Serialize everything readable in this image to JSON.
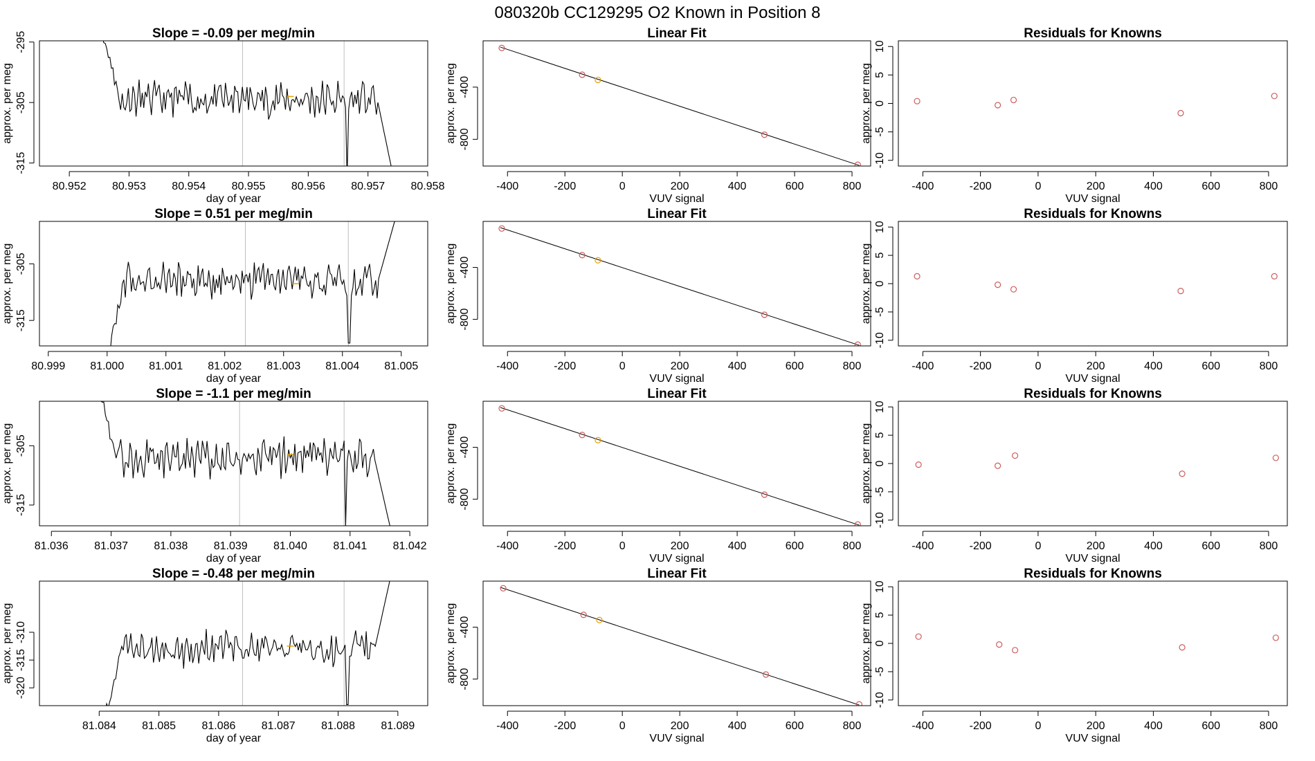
{
  "suptitle": "080320b      CC129295   O2 Known in Position  8",
  "colors": {
    "trace": "#000000",
    "point": "#cd5c5c",
    "highlight": "#e69f00",
    "vline": "#bebebe",
    "fitline": "#000000"
  },
  "chart_data": [
    {
      "row": 0,
      "type": "line",
      "title": "Slope =  -0.09  per meg/min",
      "xlabel": "day of year",
      "ylabel": "approx. per meg",
      "xlim": [
        80.9515,
        80.958
      ],
      "ylim": [
        -315.5,
        -294.8
      ],
      "xticks": [
        80.952,
        80.953,
        80.954,
        80.955,
        80.956,
        80.957,
        80.958
      ],
      "xtick_labels": [
        "80.952",
        "80.953",
        "80.954",
        "80.955",
        "80.956",
        "80.957",
        "80.958"
      ],
      "yticks": [
        -295,
        -305,
        -315
      ],
      "ytick_labels": [
        "-295",
        "-305",
        "-315"
      ],
      "vlines": [
        80.9549,
        80.9566
      ],
      "trace_start": 80.95255,
      "trace_end": 80.95745,
      "start_y": -293.0,
      "end_y": -318.5,
      "baseline": -304.5,
      "amplitude": 2.4,
      "dip_x": 80.95665,
      "dip_y": -317.5,
      "highlight": [
        80.9557,
        -304.0
      ]
    },
    {
      "row": 0,
      "type": "scatter",
      "title": "Linear Fit",
      "xlabel": "VUV signal",
      "ylabel": "approx. per meg",
      "xlim": [
        -485,
        865
      ],
      "ylim": [
        -1005,
        -45
      ],
      "xticks": [
        -400,
        -200,
        0,
        200,
        400,
        600,
        800
      ],
      "xtick_labels": [
        "-400",
        "-200",
        "0",
        "200",
        "400",
        "600",
        "800"
      ],
      "yticks": [
        -400,
        -800
      ],
      "ytick_labels": [
        "-400",
        "-800"
      ],
      "x": [
        -420,
        -140,
        -85,
        495,
        820
      ],
      "y": [
        -100,
        -305,
        -345,
        -765,
        -995
      ],
      "highlight_index": 2,
      "line_x": [
        -425,
        825
      ],
      "line_y": [
        -93,
        -1000
      ]
    },
    {
      "row": 0,
      "type": "scatter",
      "title": "Residuals for Knowns",
      "xlabel": "VUV signal",
      "ylabel": "approx. per meg",
      "xlim": [
        -485,
        865
      ],
      "ylim": [
        -11,
        11
      ],
      "xticks": [
        -400,
        -200,
        0,
        200,
        400,
        600,
        800
      ],
      "xtick_labels": [
        "-400",
        "-200",
        "0",
        "200",
        "400",
        "600",
        "800"
      ],
      "yticks": [
        10,
        5,
        0,
        -5,
        -10
      ],
      "ytick_labels": [
        "10",
        "5",
        "0",
        "-5",
        "-10"
      ],
      "x": [
        -420,
        -140,
        -85,
        495,
        820
      ],
      "y": [
        0.4,
        -0.3,
        0.6,
        -1.7,
        1.3
      ]
    },
    {
      "row": 1,
      "type": "line",
      "title": "Slope =  0.51  per meg/min",
      "xlabel": "day of year",
      "ylabel": "approx. per meg",
      "xlim": [
        80.99885,
        81.00545
      ],
      "ylim": [
        -319.5,
        -297.5
      ],
      "xticks": [
        80.999,
        81.0,
        81.001,
        81.002,
        81.003,
        81.004,
        81.005
      ],
      "xtick_labels": [
        "80.999",
        "81.000",
        "81.001",
        "81.002",
        "81.003",
        "81.004",
        "81.005"
      ],
      "yticks": [
        -305,
        -315
      ],
      "ytick_labels": [
        "-305",
        "-315"
      ],
      "vlines": [
        81.00235,
        81.0041
      ],
      "trace_start": 81.0,
      "trace_end": 81.0049,
      "start_y": -322.0,
      "end_y": -297.0,
      "baseline": -308.0,
      "amplitude": 2.5,
      "dip_x": 81.00412,
      "dip_y": -319.0,
      "highlight": [
        81.0032,
        -308.5
      ]
    },
    {
      "row": 1,
      "type": "scatter",
      "title": "Linear Fit",
      "xlabel": "VUV signal",
      "ylabel": "approx. per meg",
      "xlim": [
        -485,
        865
      ],
      "ylim": [
        -1005,
        -45
      ],
      "xticks": [
        -400,
        -200,
        0,
        200,
        400,
        600,
        800
      ],
      "xtick_labels": [
        "-400",
        "-200",
        "0",
        "200",
        "400",
        "600",
        "800"
      ],
      "yticks": [
        -400,
        -800
      ],
      "ytick_labels": [
        "-400",
        "-800"
      ],
      "x": [
        -420,
        -140,
        -85,
        495,
        820
      ],
      "y": [
        -100,
        -305,
        -345,
        -765,
        -995
      ],
      "highlight_index": 2,
      "line_x": [
        -425,
        825
      ],
      "line_y": [
        -93,
        -1000
      ]
    },
    {
      "row": 1,
      "type": "scatter",
      "title": "Residuals for Knowns",
      "xlabel": "VUV signal",
      "ylabel": "approx. per meg",
      "xlim": [
        -485,
        865
      ],
      "ylim": [
        -11,
        11
      ],
      "xticks": [
        -400,
        -200,
        0,
        200,
        400,
        600,
        800
      ],
      "xtick_labels": [
        "-400",
        "-200",
        "0",
        "200",
        "400",
        "600",
        "800"
      ],
      "yticks": [
        10,
        5,
        0,
        -5,
        -10
      ],
      "ytick_labels": [
        "10",
        "5",
        "0",
        "-5",
        "-10"
      ],
      "x": [
        -420,
        -140,
        -85,
        495,
        820
      ],
      "y": [
        1.3,
        -0.2,
        -1.0,
        -1.3,
        1.3
      ]
    },
    {
      "row": 2,
      "type": "line",
      "title": "Slope =  -1.1  per meg/min",
      "xlabel": "day of year",
      "ylabel": "approx. per meg",
      "xlim": [
        81.0358,
        81.0423
      ],
      "ylim": [
        -318.5,
        -297.5
      ],
      "xticks": [
        81.036,
        81.037,
        81.038,
        81.039,
        81.04,
        81.041,
        81.042
      ],
      "xtick_labels": [
        "81.036",
        "81.037",
        "81.038",
        "81.039",
        "81.040",
        "81.041",
        "81.042"
      ],
      "yticks": [
        -305,
        -315
      ],
      "ytick_labels": [
        "-305",
        "-315"
      ],
      "vlines": [
        81.03915,
        81.0409
      ],
      "trace_start": 81.0368,
      "trace_end": 81.0417,
      "start_y": -296.0,
      "end_y": -320.0,
      "baseline": -307.0,
      "amplitude": 2.6,
      "dip_x": 81.04093,
      "dip_y": -318.5,
      "highlight": [
        81.04,
        -306.5
      ]
    },
    {
      "row": 2,
      "type": "scatter",
      "title": "Linear Fit",
      "xlabel": "VUV signal",
      "ylabel": "approx. per meg",
      "xlim": [
        -485,
        865
      ],
      "ylim": [
        -1005,
        -45
      ],
      "xticks": [
        -400,
        -200,
        0,
        200,
        400,
        600,
        800
      ],
      "xtick_labels": [
        "-400",
        "-200",
        "0",
        "200",
        "400",
        "600",
        "800"
      ],
      "yticks": [
        -400,
        -800
      ],
      "ytick_labels": [
        "-400",
        "-800"
      ],
      "x": [
        -420,
        -140,
        -85,
        495,
        820
      ],
      "y": [
        -100,
        -305,
        -345,
        -765,
        -995
      ],
      "highlight_index": 2,
      "line_x": [
        -425,
        825
      ],
      "line_y": [
        -93,
        -1000
      ]
    },
    {
      "row": 2,
      "type": "scatter",
      "title": "Residuals for Knowns",
      "xlabel": "VUV signal",
      "ylabel": "approx. per meg",
      "xlim": [
        -485,
        865
      ],
      "ylim": [
        -11,
        11
      ],
      "xticks": [
        -400,
        -200,
        0,
        200,
        400,
        600,
        800
      ],
      "xtick_labels": [
        "-400",
        "-200",
        "0",
        "200",
        "400",
        "600",
        "800"
      ],
      "yticks": [
        10,
        5,
        0,
        -5,
        -10
      ],
      "ytick_labels": [
        "10",
        "5",
        "0",
        "-5",
        "-10"
      ],
      "x": [
        -415,
        -140,
        -80,
        500,
        825
      ],
      "y": [
        -0.2,
        -0.4,
        1.4,
        -1.8,
        1.0
      ]
    },
    {
      "row": 3,
      "type": "line",
      "title": "Slope =  -0.48  per meg/min",
      "xlabel": "day of year",
      "ylabel": "approx. per meg",
      "xlim": [
        81.083,
        81.0895
      ],
      "ylim": [
        -323.2,
        -300.8
      ],
      "xticks": [
        81.084,
        81.085,
        81.086,
        81.087,
        81.088,
        81.089
      ],
      "xtick_labels": [
        "81.084",
        "81.085",
        "81.086",
        "81.087",
        "81.088",
        "81.089"
      ],
      "yticks": [
        -310,
        -315,
        -320
      ],
      "ytick_labels": [
        "-310",
        "-315",
        "-320"
      ],
      "vlines": [
        81.0864,
        81.0881
      ],
      "trace_start": 81.0841,
      "trace_end": 81.0889,
      "start_y": -325.0,
      "end_y": -299.0,
      "baseline": -313.0,
      "amplitude": 2.5,
      "dip_x": 81.08815,
      "dip_y": -323.0,
      "highlight": [
        81.0872,
        -312.5
      ]
    },
    {
      "row": 3,
      "type": "scatter",
      "title": "Linear Fit",
      "xlabel": "VUV signal",
      "ylabel": "approx. per meg",
      "xlim": [
        -485,
        865
      ],
      "ylim": [
        -1005,
        -45
      ],
      "xticks": [
        -400,
        -200,
        0,
        200,
        400,
        600,
        800
      ],
      "xtick_labels": [
        "-400",
        "-200",
        "0",
        "200",
        "400",
        "600",
        "800"
      ],
      "yticks": [
        -400,
        -800
      ],
      "ytick_labels": [
        "-400",
        "-800"
      ],
      "x": [
        -415,
        -135,
        -80,
        500,
        825
      ],
      "y": [
        -100,
        -305,
        -345,
        -765,
        -995
      ],
      "highlight_index": 2,
      "line_x": [
        -425,
        825
      ],
      "line_y": [
        -93,
        -1000
      ]
    },
    {
      "row": 3,
      "type": "scatter",
      "title": "Residuals for Knowns",
      "xlabel": "VUV signal",
      "ylabel": "approx. per meg",
      "xlim": [
        -485,
        865
      ],
      "ylim": [
        -11,
        11
      ],
      "xticks": [
        -400,
        -200,
        0,
        200,
        400,
        600,
        800
      ],
      "xtick_labels": [
        "-400",
        "-200",
        "0",
        "200",
        "400",
        "600",
        "800"
      ],
      "yticks": [
        10,
        5,
        0,
        -5,
        -10
      ],
      "ytick_labels": [
        "10",
        "5",
        "0",
        "-5",
        "-10"
      ],
      "x": [
        -415,
        -135,
        -80,
        500,
        825
      ],
      "y": [
        1.2,
        -0.2,
        -1.2,
        -0.7,
        1.0
      ]
    }
  ]
}
